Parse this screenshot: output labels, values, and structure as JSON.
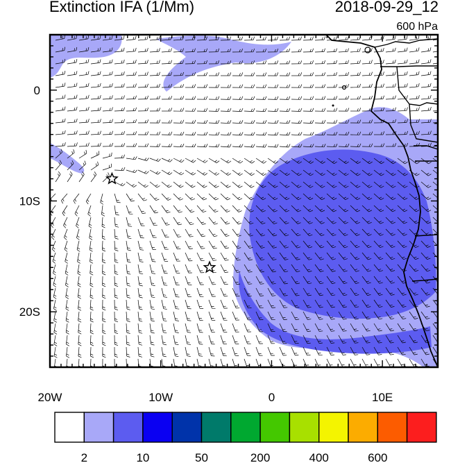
{
  "title_left": "Extinction IFA (1/Mm)",
  "title_right": "2018-09-29_12",
  "level": "600 hPa",
  "lon_ticks": [
    {
      "value": -20,
      "label": "20W"
    },
    {
      "value": -10,
      "label": "10W"
    },
    {
      "value": 0,
      "label": "0"
    },
    {
      "value": 10,
      "label": "10E"
    }
  ],
  "lat_ticks": [
    {
      "value": 0,
      "label": "0"
    },
    {
      "value": -10,
      "label": "10S"
    },
    {
      "value": -20,
      "label": "20S"
    }
  ],
  "map_extent": {
    "lon": [
      -20,
      15
    ],
    "lat": [
      -25,
      5
    ]
  },
  "stars": [
    {
      "lon": -14.4,
      "lat": -8.0
    },
    {
      "lon": -5.6,
      "lat": -16.0
    }
  ],
  "colorbar": {
    "colors": [
      "#ffffff",
      "#a8a8f8",
      "#5c5cf0",
      "#0a00f2",
      "#0033aa",
      "#007a6a",
      "#00a830",
      "#44c800",
      "#a8e000",
      "#f4f400",
      "#fcac00",
      "#fc5c00",
      "#fc1e1e"
    ],
    "labels": [
      {
        "after_box": 1,
        "text": "2"
      },
      {
        "after_box": 3,
        "text": "10"
      },
      {
        "after_box": 5,
        "text": "50"
      },
      {
        "after_box": 7,
        "text": "200"
      },
      {
        "after_box": 9,
        "text": "400"
      },
      {
        "after_box": 11,
        "text": "600"
      }
    ]
  },
  "shading": {
    "low": "#a8a8f8",
    "mid": "#5c5cf0"
  }
}
